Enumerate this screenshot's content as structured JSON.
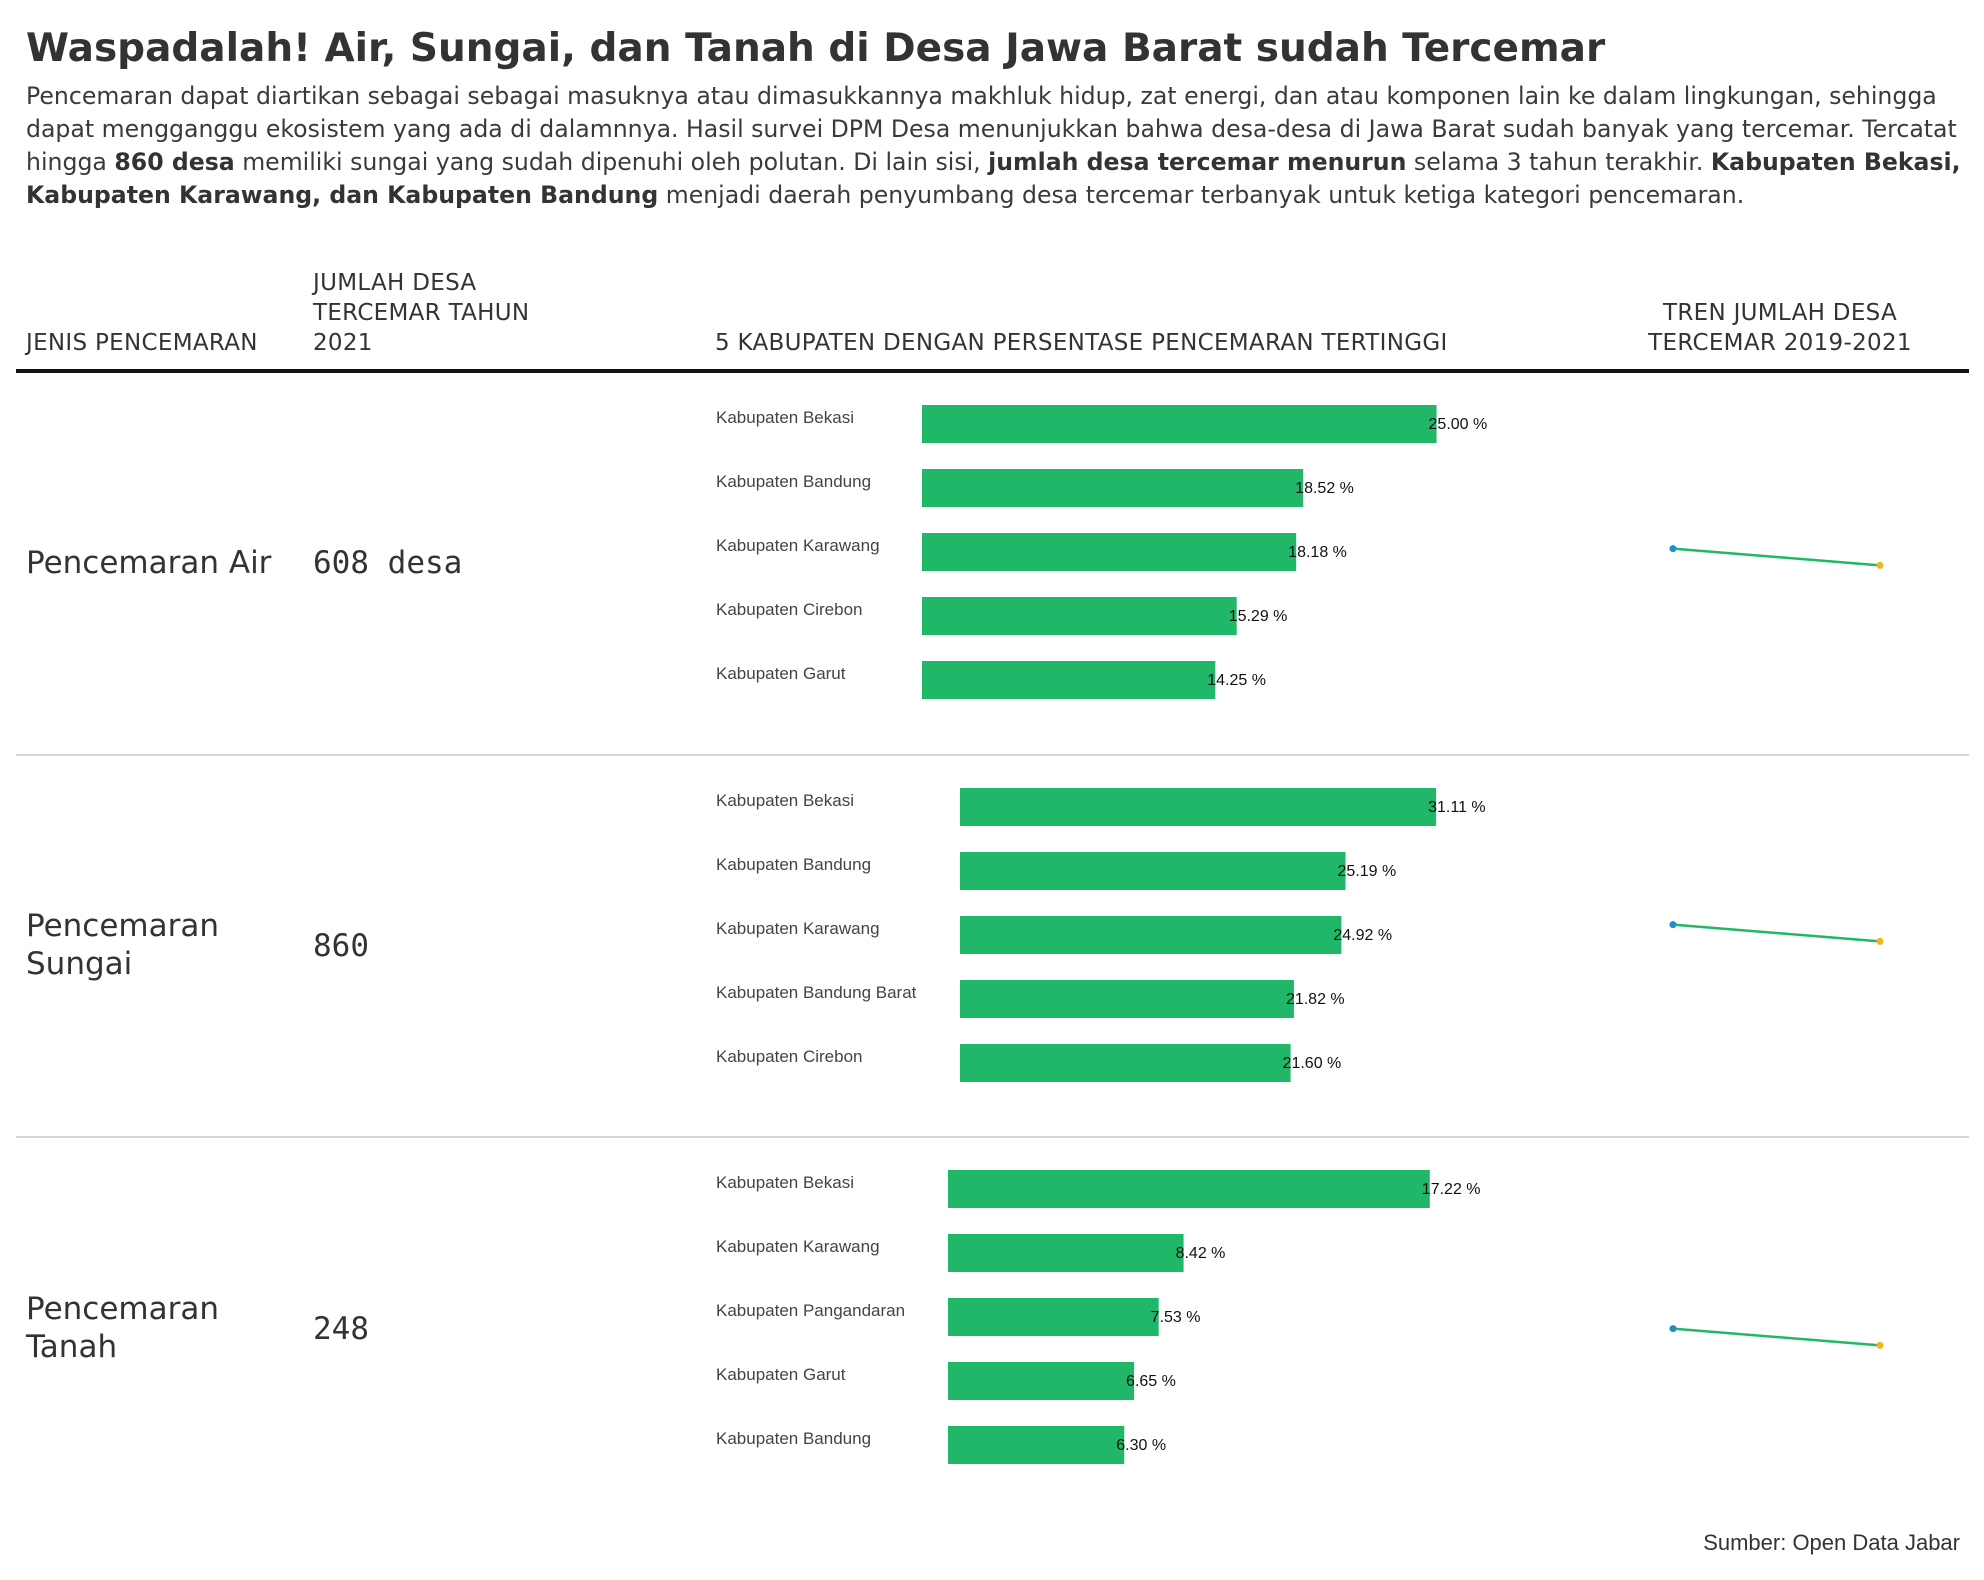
{
  "header": {
    "title": "Waspadalah! Air, Sungai, dan Tanah di Desa Jawa Barat sudah Tercemar",
    "subtitle": {
      "part1": "Pencemaran dapat diartikan sebagai sebagai masuknya atau dimasukkannya makhluk hidup, zat energi, dan atau komponen lain ke dalam lingkungan, sehingga dapat mengganggu ekosistem yang ada di dalamnnya. Hasil survei DPM Desa menunjukkan bahwa desa-desa di Jawa Barat sudah banyak yang tercemar. Tercatat hingga ",
      "bold1": "860 desa",
      "part2": " memiliki sungai yang sudah dipenuhi oleh polutan. Di lain sisi, ",
      "bold2": "jumlah desa tercemar menurun",
      "part3": " selama 3 tahun terakhir. ",
      "bold3": "Kabupaten Bekasi, Kabupaten Karawang, dan Kabupaten Bandung",
      "part4": " menjadi daerah penyumbang desa tercemar terbanyak untuk ketiga kategori pencemaran."
    }
  },
  "columns": {
    "jenis": "JENIS PENCEMARAN",
    "jumlah_line1": "JUMLAH DESA",
    "jumlah_line2": "TERCEMAR TAHUN",
    "jumlah_line3": "2021",
    "kabupaten": "5 KABUPATEN DENGAN PERSENTASE PENCEMARAN TERTINGGI",
    "tren_line1": "TREN JUMLAH DESA",
    "tren_line2": "TERCEMAR 2019-2021"
  },
  "rows": [
    {
      "label_line1": "Pencemaran Air",
      "label_line2": "",
      "count": "608 desa"
    },
    {
      "label_line1": "Pencemaran",
      "label_line2": "Sungai",
      "count": "860"
    },
    {
      "label_line1": "Pencemaran",
      "label_line2": "Tanah",
      "count": "248"
    }
  ],
  "colors": {
    "bar": "#20b768",
    "trend_line": "#20b768",
    "trend_start": "#1f8fc5",
    "trend_end": "#f3b51b"
  },
  "chart_data": [
    {
      "type": "bar",
      "orientation": "horizontal",
      "categories": [
        "Kabupaten Bekasi",
        "Kabupaten Bandung",
        "Kabupaten Karawang",
        "Kabupaten Cirebon",
        "Kabupaten Garut"
      ],
      "values": [
        25.0,
        18.52,
        18.18,
        15.29,
        14.25
      ],
      "value_labels": [
        "25.00 %",
        "18.52 %",
        "18.18 %",
        "15.29 %",
        "14.25 %"
      ],
      "xlim": [
        0,
        27.5
      ]
    },
    {
      "type": "bar",
      "orientation": "horizontal",
      "categories": [
        "Kabupaten Bekasi",
        "Kabupaten Bandung",
        "Kabupaten Karawang",
        "Kabupaten Bandung Barat",
        "Kabupaten Cirebon"
      ],
      "values": [
        31.11,
        25.19,
        24.92,
        21.82,
        21.6
      ],
      "value_labels": [
        "31.11 %",
        "25.19 %",
        "24.92 %",
        "21.82 %",
        "21.60 %"
      ],
      "xlim": [
        0,
        34.5
      ]
    },
    {
      "type": "bar",
      "orientation": "horizontal",
      "categories": [
        "Kabupaten Bekasi",
        "Kabupaten Karawang",
        "Kabupaten Pangandaran",
        "Kabupaten Garut",
        "Kabupaten Bandung"
      ],
      "values": [
        17.22,
        8.42,
        7.53,
        6.65,
        6.3
      ],
      "value_labels": [
        "17.22 %",
        "8.42 %",
        "7.53 %",
        "6.65 %",
        "6.30 %"
      ],
      "xlim": [
        0,
        19.3
      ]
    },
    {
      "type": "line",
      "x": [
        "2019",
        "2021"
      ],
      "series": [
        {
          "values": [
            0.95,
            0.89
          ]
        },
        {
          "values": [
            0.95,
            0.89
          ]
        },
        {
          "values": [
            0.95,
            0.89
          ]
        }
      ]
    }
  ],
  "source": "Sumber: Open Data Jabar"
}
